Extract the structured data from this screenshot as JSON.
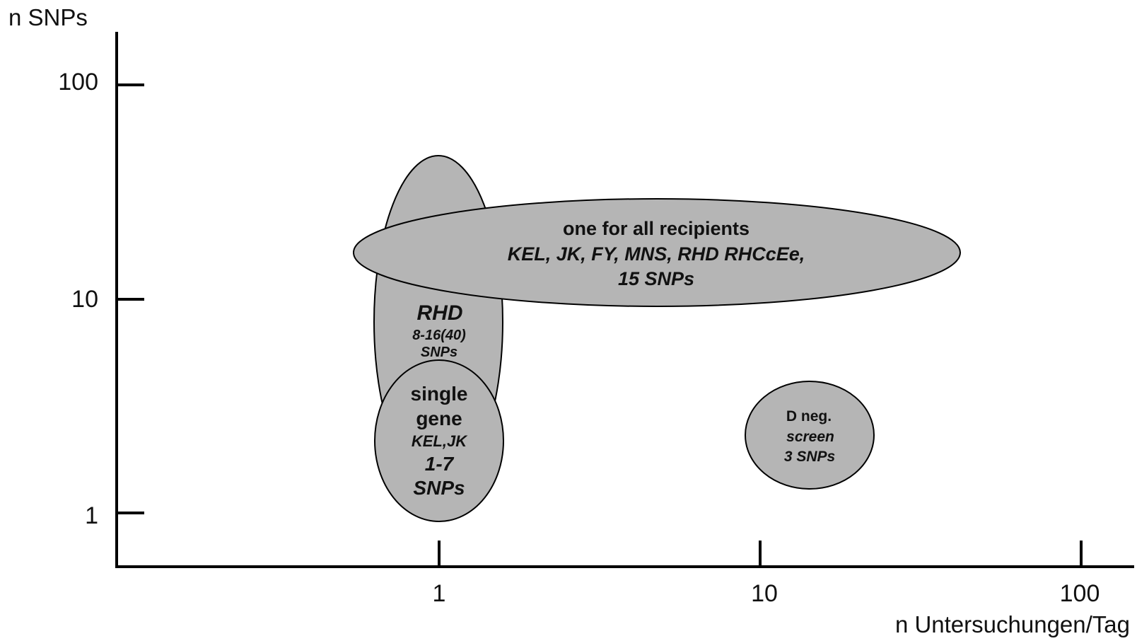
{
  "axes": {
    "y_title": "n SNPs",
    "x_title": "n Untersuchungen/Tag",
    "y_ticks": [
      "100",
      "10",
      "1"
    ],
    "x_ticks": [
      "1",
      "10",
      "100"
    ],
    "scale": "log"
  },
  "colors": {
    "ellipse_fill": "#b5b5b5",
    "stroke": "#000000"
  },
  "groups": {
    "rhd": {
      "title": "RHD",
      "line1": "8-16(40)",
      "line2": "SNPs"
    },
    "single_gene": {
      "line1": "single",
      "line2": "gene",
      "line3": "KEL,JK",
      "line4": "1-7",
      "line5": "SNPs"
    },
    "all_recipients": {
      "line1": "one for all recipients",
      "line2": "KEL, JK, FY, MNS, RHD RHCcEe,",
      "line3": "15 SNPs"
    },
    "d_neg": {
      "line1": "D neg.",
      "line2": "screen",
      "line3": "3 SNPs"
    }
  }
}
